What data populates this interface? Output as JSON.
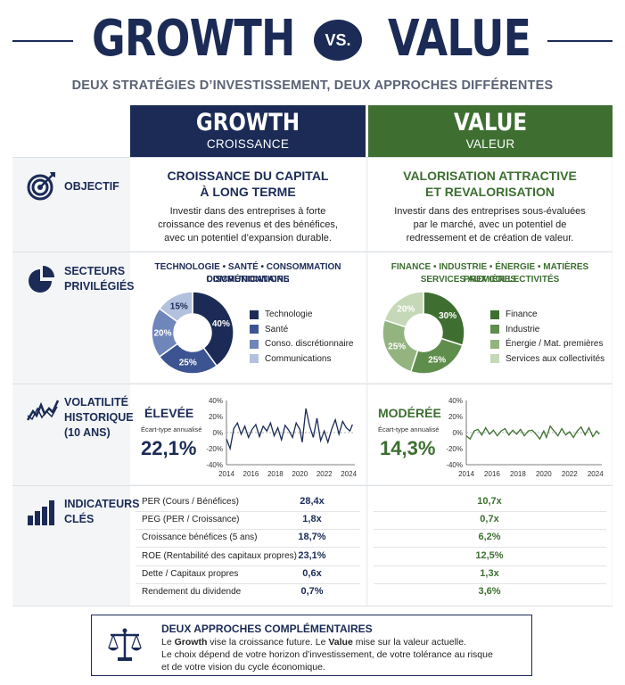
{
  "header": {
    "title_left": "GROWTH",
    "vs": "VS.",
    "title_right": "VALUE",
    "subtitle": "DEUX STRATÉGIES D’INVESTISSEMENT, DEUX APPROCHES DIFFÉRENTES"
  },
  "colors": {
    "navy": "#1b2b56",
    "green": "#3e6f31"
  },
  "columns": [
    {
      "title": "GROWTH",
      "subtitle": "CROISSANCE"
    },
    {
      "title": "VALUE",
      "subtitle": "VALEUR"
    }
  ],
  "rows": {
    "objectif": {
      "label": "OBJECTIF",
      "icon": "target-icon",
      "growth": {
        "title_l1": "CROISSANCE DU CAPITAL",
        "title_l2": "À LONG TERME",
        "text_l1": "Investir dans des entreprises à forte",
        "text_l2": "croissance des revenus et des bénéfices,",
        "text_l3": "avec un potentiel d’expansion durable."
      },
      "value": {
        "title_l1": "VALORISATION ATTRACTIVE",
        "title_l2": "ET REVALORISATION",
        "text_l1": "Investir dans des entreprises sous-évaluées",
        "text_l2": "par le marché, avec un potentiel de",
        "text_l3": "redressement et de création de valeur."
      }
    },
    "secteurs": {
      "label_l1": "SECTEURS",
      "label_l2": "PRIVILÉGIÉS",
      "icon": "pie-icon",
      "growth_title_l1": "TECHNOLOGIE • SANTÉ • CONSOMMATION DISCRÉTIONNAIRE",
      "growth_title_l2": "COMMUNICATIONS",
      "value_title_l1": "FINANCE • INDUSTRIE • ÉNERGIE • MATIÈRES PREMIÈRES",
      "value_title_l2": "SERVICES AUX COLLECTIVITÉS"
    },
    "volatilite": {
      "label_l1": "VOLATILITÉ",
      "label_l2": "HISTORIQUE",
      "label_l3": "(10 ANS)",
      "icon": "volatility-icon",
      "growth": {
        "level": "ÉLEVÉE",
        "sub": "Écart-type annualisé",
        "value": "22,1%"
      },
      "value": {
        "level": "MODÉRÉE",
        "sub": "Écart-type annualisé",
        "value": "14,3%"
      }
    },
    "indicateurs": {
      "label_l1": "INDICATEURS",
      "label_l2": "CLÉS",
      "icon": "bar-chart-icon",
      "items": [
        {
          "label": "PER (Cours / Bénéfices)",
          "growth": "28,4x",
          "value": "10,7x"
        },
        {
          "label": "PEG (PER / Croissance)",
          "growth": "1,8x",
          "value": "0,7x"
        },
        {
          "label": "Croissance bénéfices (5 ans)",
          "growth": "18,7%",
          "value": "6,2%"
        },
        {
          "label": "ROE (Rentabilité des capitaux propres)",
          "growth": "23,1%",
          "value": "12,5%"
        },
        {
          "label": "Dette / Capitaux propres",
          "growth": "0,6x",
          "value": "1,3x"
        },
        {
          "label": "Rendement du dividende",
          "growth": "0,7%",
          "value": "3,6%"
        }
      ]
    }
  },
  "footer": {
    "icon": "scales-icon",
    "title": "DEUX APPROCHES COMPLÉMENTAIRES",
    "line1_prefix": "Le ",
    "line1_bold1": "Growth",
    "line1_mid": " vise la croissance future. Le ",
    "line1_bold2": "Value",
    "line1_suffix": " mise sur la valeur actuelle.",
    "line2": "Le choix dépend de votre horizon d’investissement, de votre tolérance au risque",
    "line3": "et de votre vision du cycle économique."
  },
  "chart_data": [
    {
      "type": "pie",
      "name": "Growth sectors",
      "categories": [
        "Technologie",
        "Santé",
        "Conso. discrétionnaire",
        "Communications"
      ],
      "values": [
        40,
        25,
        20,
        15
      ],
      "labels": [
        "40%",
        "25%",
        "20%",
        "15%"
      ],
      "colors": [
        "#1b2b56",
        "#3d5493",
        "#6f86bb",
        "#b3c1de"
      ]
    },
    {
      "type": "pie",
      "name": "Value sectors",
      "categories": [
        "Finance",
        "Industrie",
        "Énergie / Mat. premières",
        "Services aux collectivités"
      ],
      "values": [
        30,
        25,
        25,
        20
      ],
      "labels": [
        "30%",
        "25%",
        "25%",
        "20%"
      ],
      "colors": [
        "#3e6f31",
        "#5f8d4c",
        "#93b47f",
        "#c5d8b7"
      ]
    },
    {
      "type": "line",
      "name": "Growth volatility",
      "x_ticks": [
        "2014",
        "2016",
        "2018",
        "2020",
        "2022",
        "2024"
      ],
      "y_ticks": [
        "40%",
        "20%",
        "0%",
        "-20%",
        "-40%"
      ],
      "ylim": [
        -40,
        40
      ],
      "xlim": [
        2014,
        2024.5
      ],
      "color": "#1b2b56",
      "x": [
        2014.0,
        2014.3,
        2014.6,
        2014.9,
        2015.2,
        2015.5,
        2015.8,
        2016.1,
        2016.4,
        2016.7,
        2017.0,
        2017.3,
        2017.6,
        2017.9,
        2018.2,
        2018.5,
        2018.8,
        2019.1,
        2019.4,
        2019.7,
        2020.0,
        2020.2,
        2020.5,
        2020.8,
        2021.1,
        2021.4,
        2021.7,
        2022.0,
        2022.3,
        2022.6,
        2022.9,
        2023.2,
        2023.5,
        2023.8,
        2024.1,
        2024.3
      ],
      "y": [
        -8,
        -20,
        5,
        12,
        -2,
        8,
        -6,
        4,
        10,
        -5,
        8,
        2,
        12,
        -4,
        6,
        -9,
        9,
        3,
        -6,
        12,
        4,
        -12,
        30,
        8,
        -6,
        18,
        -10,
        2,
        -12,
        4,
        16,
        -2,
        14,
        6,
        2,
        10
      ]
    },
    {
      "type": "line",
      "name": "Value volatility",
      "x_ticks": [
        "2014",
        "2016",
        "2018",
        "2020",
        "2022",
        "2024"
      ],
      "y_ticks": [
        "40%",
        "20%",
        "0%",
        "-20%",
        "-40%"
      ],
      "ylim": [
        -40,
        40
      ],
      "xlim": [
        2014,
        2024.5
      ],
      "color": "#3e6f31",
      "x": [
        2014.0,
        2014.3,
        2014.6,
        2014.9,
        2015.2,
        2015.5,
        2015.8,
        2016.1,
        2016.4,
        2016.7,
        2017.0,
        2017.3,
        2017.6,
        2017.9,
        2018.2,
        2018.5,
        2018.8,
        2019.1,
        2019.4,
        2019.7,
        2020.0,
        2020.2,
        2020.5,
        2020.8,
        2021.1,
        2021.4,
        2021.7,
        2022.0,
        2022.3,
        2022.6,
        2022.9,
        2023.2,
        2023.5,
        2023.8,
        2024.1,
        2024.3
      ],
      "y": [
        -4,
        -8,
        2,
        4,
        -3,
        6,
        -2,
        3,
        -4,
        2,
        5,
        -3,
        3,
        -2,
        4,
        -4,
        2,
        3,
        -2,
        -8,
        2,
        -6,
        8,
        2,
        -4,
        5,
        -3,
        1,
        -6,
        2,
        7,
        -3,
        6,
        -5,
        2,
        -2
      ]
    }
  ]
}
